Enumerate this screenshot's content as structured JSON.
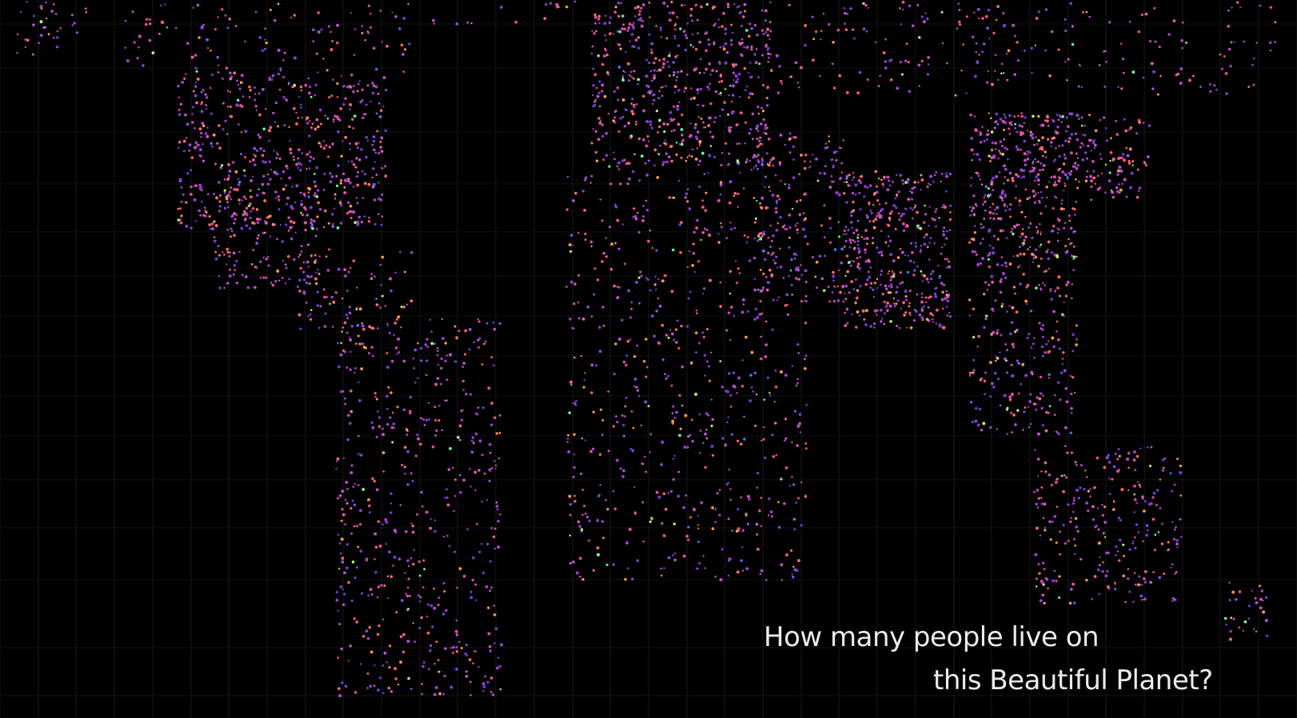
{
  "map": {
    "background": "#000000",
    "grid_color": "#2a2a2a",
    "point_palette": [
      "#7a3fd0",
      "#9a44d8",
      "#c04fd0",
      "#e8509c",
      "#ff6a6a",
      "#ff9a4a",
      "#b8ff6a",
      "#6aff9a",
      "#5b6cf0"
    ],
    "regions": [
      {
        "name": "",
        "lon": [
          -125,
          -67
        ],
        "lat": [
          25,
          52
        ],
        "density": 520
      },
      {
        "name": "",
        "lon": [
          -140,
          -60
        ],
        "lat": [
          52,
          72
        ],
        "density": 180
      },
      {
        "name": "",
        "lon": [
          -115,
          -86
        ],
        "lat": [
          15,
          32
        ],
        "density": 160
      },
      {
        "name": "",
        "lon": [
          -92,
          -60
        ],
        "lat": [
          8,
          22
        ],
        "density": 90
      },
      {
        "name": "",
        "lon": [
          -81,
          -35
        ],
        "lat": [
          -55,
          10
        ],
        "density": 520
      },
      {
        "name": "",
        "lon": [
          -170,
          -150
        ],
        "lat": [
          55,
          72
        ],
        "density": 60
      },
      {
        "name": "",
        "lon": [
          -10,
          40
        ],
        "lat": [
          36,
          70
        ],
        "density": 700
      },
      {
        "name": "",
        "lon": [
          -17,
          50
        ],
        "lat": [
          -35,
          36
        ],
        "density": 650
      },
      {
        "name": "",
        "lon": [
          35,
          60
        ],
        "lat": [
          12,
          42
        ],
        "density": 180
      },
      {
        "name": "",
        "lon": [
          40,
          180
        ],
        "lat": [
          48,
          75
        ],
        "density": 380
      },
      {
        "name": "",
        "lon": [
          60,
          90
        ],
        "lat": [
          8,
          35
        ],
        "density": 420
      },
      {
        "name": "",
        "lon": [
          95,
          125
        ],
        "lat": [
          20,
          45
        ],
        "density": 420
      },
      {
        "name": "",
        "lon": [
          125,
          145
        ],
        "lat": [
          30,
          45
        ],
        "density": 110
      },
      {
        "name": "",
        "lon": [
          95,
          125
        ],
        "lat": [
          -10,
          20
        ],
        "density": 230
      },
      {
        "name": "",
        "lon": [
          113,
          154
        ],
        "lat": [
          -39,
          -12
        ],
        "density": 260
      },
      {
        "name": "",
        "lon": [
          166,
          178
        ],
        "lat": [
          -46,
          -35
        ],
        "density": 30
      },
      {
        "name": "",
        "lon": [
          -55,
          -20
        ],
        "lat": [
          60,
          80
        ],
        "density": 30
      },
      {
        "name": "",
        "lon": [
          -25,
          -13
        ],
        "lat": [
          63,
          67
        ],
        "density": 25
      }
    ]
  },
  "headline": {
    "line1": "How many people live on",
    "line2": "this Beautiful Planet?"
  }
}
